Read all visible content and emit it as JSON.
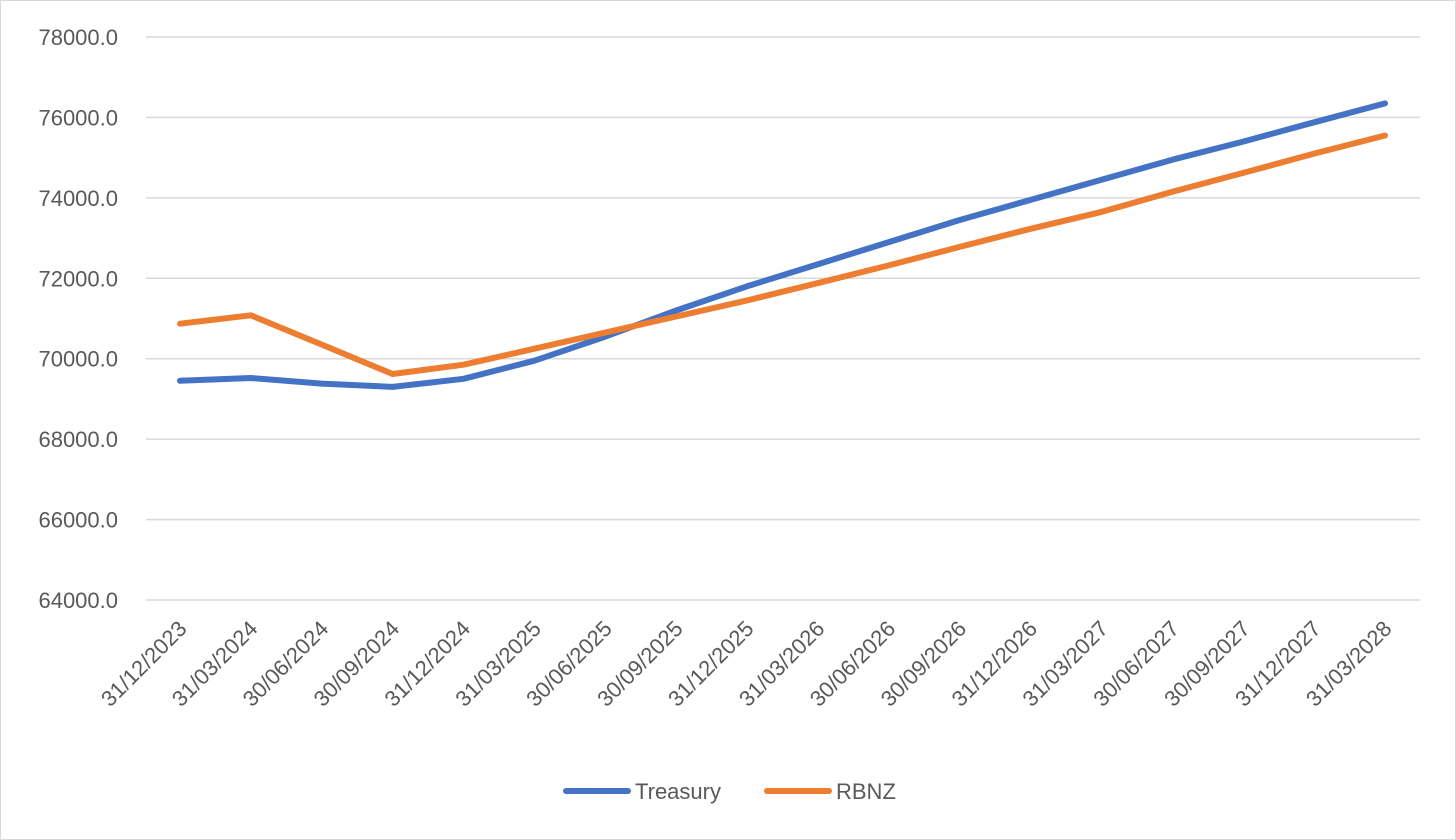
{
  "chart_data": {
    "type": "line",
    "title": "",
    "xlabel": "",
    "ylabel": "",
    "categories": [
      "31/12/2023",
      "31/03/2024",
      "30/06/2024",
      "30/09/2024",
      "31/12/2024",
      "31/03/2025",
      "30/06/2025",
      "30/09/2025",
      "31/12/2025",
      "31/03/2026",
      "30/06/2026",
      "30/09/2026",
      "31/12/2026",
      "31/03/2027",
      "30/06/2027",
      "30/09/2027",
      "31/12/2027",
      "31/03/2028"
    ],
    "y_ticks": [
      "64000.0",
      "66000.0",
      "68000.0",
      "70000.0",
      "72000.0",
      "74000.0",
      "76000.0",
      "78000.0"
    ],
    "ylim": [
      64000,
      78000
    ],
    "grid": true,
    "legend_position": "bottom",
    "series": [
      {
        "name": "Treasury",
        "color": "#4472C4",
        "values": [
          69450,
          69520,
          69380,
          69300,
          69500,
          69950,
          70550,
          71200,
          71800,
          72350,
          72900,
          73450,
          73950,
          74450,
          74950,
          75400,
          75880,
          76350
        ]
      },
      {
        "name": "RBNZ",
        "color": "#ED7D31",
        "values": [
          70870,
          71080,
          70350,
          69620,
          69850,
          70250,
          70650,
          71050,
          71450,
          71880,
          72320,
          72780,
          73230,
          73650,
          74150,
          74620,
          75100,
          75550
        ]
      }
    ]
  }
}
